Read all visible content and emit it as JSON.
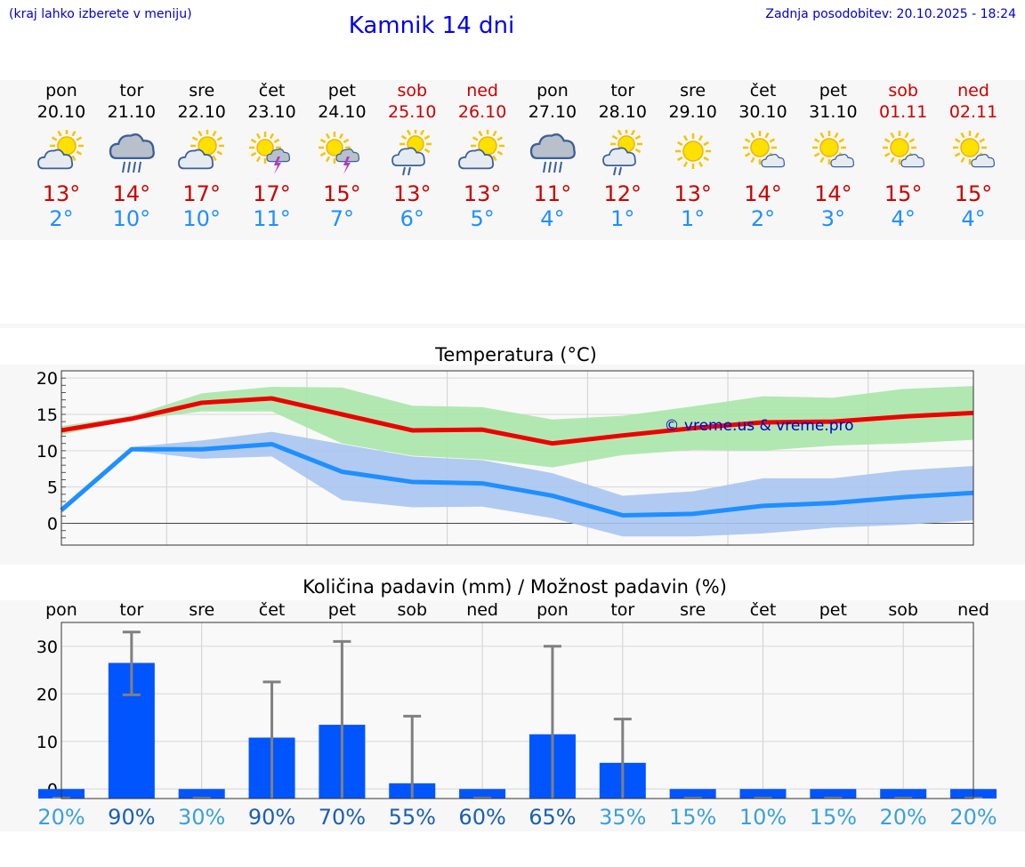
{
  "header": {
    "hint": "(kraj lahko izberete v meniju)",
    "title": "Kamnik 14 dni",
    "updated": "Zadnja posodobitev: 20.10.2025 - 18:24"
  },
  "colors": {
    "max_temp": "#cc0000",
    "min_temp": "#1e8fff",
    "max_band": "#a8e6a8",
    "min_band": "#a8c4f0",
    "max_line": "#ee0000",
    "min_line": "#1e8fff",
    "rain_bar": "#0055ff",
    "weekend": "#cc0000"
  },
  "days": [
    {
      "name": "pon",
      "date": "20.10",
      "max": "13°",
      "min": "2°",
      "icon": "partly-cloudy-icon",
      "weekend": false
    },
    {
      "name": "tor",
      "date": "21.10",
      "max": "14°",
      "min": "10°",
      "icon": "rain-cloud-icon",
      "weekend": false
    },
    {
      "name": "sre",
      "date": "22.10",
      "max": "17°",
      "min": "10°",
      "icon": "partly-cloudy-icon",
      "weekend": false
    },
    {
      "name": "čet",
      "date": "23.10",
      "max": "17°",
      "min": "11°",
      "icon": "sun-thunderstorm-icon",
      "weekend": false
    },
    {
      "name": "pet",
      "date": "24.10",
      "max": "15°",
      "min": "7°",
      "icon": "sun-thunderstorm-icon",
      "weekend": false
    },
    {
      "name": "sob",
      "date": "25.10",
      "max": "13°",
      "min": "6°",
      "icon": "sun-cloud-rain-icon",
      "weekend": true
    },
    {
      "name": "ned",
      "date": "26.10",
      "max": "13°",
      "min": "5°",
      "icon": "partly-cloudy-icon",
      "weekend": true
    },
    {
      "name": "pon",
      "date": "27.10",
      "max": "11°",
      "min": "4°",
      "icon": "rain-cloud-icon",
      "weekend": false
    },
    {
      "name": "tor",
      "date": "28.10",
      "max": "12°",
      "min": "1°",
      "icon": "sun-cloud-rain-icon",
      "weekend": false
    },
    {
      "name": "sre",
      "date": "29.10",
      "max": "13°",
      "min": "1°",
      "icon": "sun-icon",
      "weekend": false
    },
    {
      "name": "čet",
      "date": "30.10",
      "max": "14°",
      "min": "2°",
      "icon": "sun-small-cloud-icon",
      "weekend": false
    },
    {
      "name": "pet",
      "date": "31.10",
      "max": "14°",
      "min": "3°",
      "icon": "sun-small-cloud-icon",
      "weekend": false
    },
    {
      "name": "sob",
      "date": "01.11",
      "max": "15°",
      "min": "4°",
      "icon": "sun-small-cloud-icon",
      "weekend": true
    },
    {
      "name": "ned",
      "date": "02.11",
      "max": "15°",
      "min": "4°",
      "icon": "sun-small-cloud-icon",
      "weekend": true
    }
  ],
  "chart_data": [
    {
      "type": "line",
      "title": "Temperatura (°C)",
      "watermark": "© vreme.us & vreme.pro",
      "x": [
        0,
        1,
        2,
        3,
        4,
        5,
        6,
        7,
        8,
        9,
        10,
        11,
        12,
        13
      ],
      "ylim": [
        -3,
        21
      ],
      "yticks": [
        0,
        5,
        10,
        15,
        20
      ],
      "grid": true,
      "series": [
        {
          "values": [
            12.8,
            14.4,
            16.6,
            17.2,
            15.0,
            12.8,
            12.9,
            11.0,
            12.1,
            13.1,
            13.9,
            14.0,
            14.7,
            15.2
          ],
          "band_low": [
            12.2,
            14.2,
            15.4,
            15.4,
            11.0,
            9.3,
            8.8,
            7.7,
            9.4,
            10.1,
            10.0,
            10.7,
            11.0,
            11.5
          ],
          "band_high": [
            13.4,
            14.8,
            17.9,
            18.8,
            18.7,
            16.2,
            16.0,
            14.3,
            14.8,
            16.1,
            17.5,
            17.3,
            18.5,
            18.9
          ]
        },
        {
          "values": [
            1.8,
            10.2,
            10.2,
            10.9,
            7.1,
            5.7,
            5.5,
            3.8,
            1.1,
            1.3,
            2.4,
            2.8,
            3.6,
            4.2
          ],
          "band_low": [
            1.4,
            10.0,
            8.9,
            9.2,
            3.2,
            2.2,
            2.3,
            0.7,
            -1.8,
            -1.8,
            -1.4,
            -0.6,
            -0.2,
            0.4
          ],
          "band_high": [
            2.3,
            10.5,
            11.4,
            12.6,
            10.9,
            9.2,
            8.7,
            6.9,
            3.8,
            4.4,
            6.2,
            6.2,
            7.3,
            7.9
          ]
        }
      ]
    },
    {
      "type": "bar",
      "title": "Količina padavin (mm) / Možnost padavin (%)",
      "categories": [
        "pon",
        "tor",
        "sre",
        "čet",
        "pet",
        "sob",
        "ned",
        "pon",
        "tor",
        "sre",
        "čet",
        "pet",
        "sob",
        "ned"
      ],
      "values": [
        0,
        26.5,
        0,
        10.8,
        13.5,
        1.2,
        0,
        11.5,
        5.5,
        0,
        0,
        0,
        0,
        0
      ],
      "error_low": [
        0,
        19.8,
        0,
        0,
        0,
        0,
        0,
        0,
        0,
        0,
        0,
        0,
        0,
        0
      ],
      "error_high": [
        0,
        33.0,
        0,
        22.5,
        31.0,
        15.3,
        0,
        30.0,
        14.7,
        0,
        0,
        0,
        0,
        0
      ],
      "probability": [
        "20%",
        "90%",
        "30%",
        "90%",
        "70%",
        "55%",
        "60%",
        "65%",
        "35%",
        "15%",
        "10%",
        "15%",
        "20%",
        "20%"
      ],
      "probability_dark": [
        false,
        true,
        false,
        true,
        true,
        true,
        true,
        true,
        false,
        false,
        false,
        false,
        false,
        false
      ],
      "ylim": [
        -2,
        35
      ],
      "yticks": [
        0,
        10,
        20,
        30
      ],
      "grid": true
    }
  ]
}
